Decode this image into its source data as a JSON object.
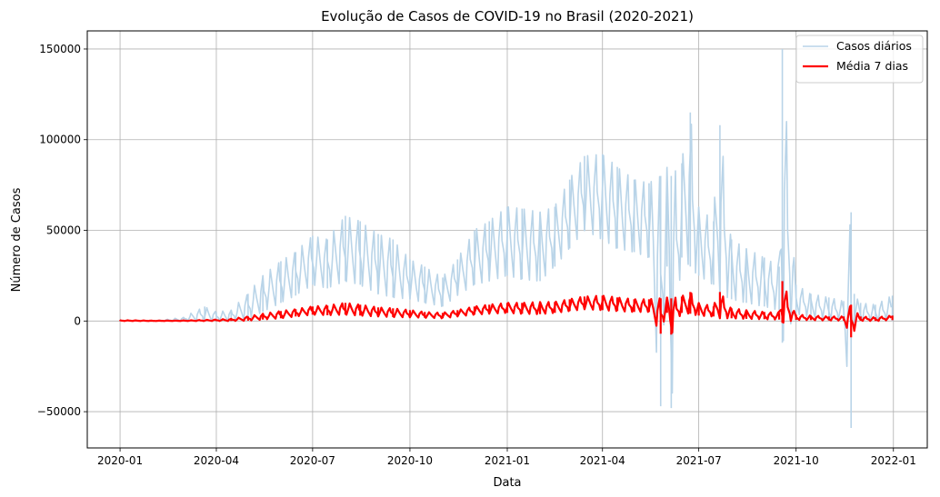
{
  "chart_data": {
    "type": "line",
    "title": "Evolução de Casos de COVID-19 no Brasil (2020-2021)",
    "xlabel": "Data",
    "ylabel": "Número de Casos",
    "xlim": [
      "2019-12-01",
      "2022-02-02"
    ],
    "ylim": [
      -70000,
      160000
    ],
    "x_ticks": [
      "2020-01",
      "2020-04",
      "2020-07",
      "2020-10",
      "2021-01",
      "2021-04",
      "2021-07",
      "2021-10",
      "2022-01"
    ],
    "y_ticks": [
      -50000,
      0,
      50000,
      100000,
      150000
    ],
    "grid": true,
    "legend_position": "top-right",
    "colors": {
      "daily": "#b9d4e8",
      "avg": "#ff0000",
      "grid": "#b0b0b0"
    },
    "series": [
      {
        "name": "Casos diários",
        "style": "thin light blue line",
        "x": [
          "2020-01-01",
          "2020-02-01",
          "2020-03-01",
          "2020-03-21",
          "2020-04-01",
          "2020-04-15",
          "2020-05-01",
          "2020-05-15",
          "2020-06-01",
          "2020-06-15",
          "2020-07-01",
          "2020-07-15",
          "2020-08-01",
          "2020-08-15",
          "2020-09-01",
          "2020-09-15",
          "2020-10-01",
          "2020-10-15",
          "2020-11-01",
          "2020-11-15",
          "2020-12-01",
          "2020-12-15",
          "2021-01-01",
          "2021-01-15",
          "2021-02-01",
          "2021-02-15",
          "2021-03-01",
          "2021-03-15",
          "2021-04-01",
          "2021-04-15",
          "2021-05-01",
          "2021-05-15",
          "2021-05-26",
          "2021-06-01",
          "2021-06-05",
          "2021-06-15",
          "2021-06-23",
          "2021-07-01",
          "2021-07-15",
          "2021-07-21",
          "2021-08-01",
          "2021-08-15",
          "2021-09-01",
          "2021-09-15",
          "2021-09-18",
          "2021-10-01",
          "2021-10-15",
          "2021-11-01",
          "2021-11-15",
          "2021-11-22",
          "2021-11-25",
          "2021-12-01",
          "2021-12-15",
          "2021-12-31"
        ],
        "high": [
          500,
          0,
          2000,
          8000,
          5000,
          6000,
          15000,
          25000,
          33000,
          38000,
          47000,
          45000,
          58000,
          55000,
          48000,
          45000,
          34000,
          30000,
          24000,
          34000,
          50000,
          55000,
          63000,
          62000,
          60000,
          63000,
          78000,
          91000,
          92000,
          85000,
          78000,
          76000,
          80000,
          85000,
          80000,
          87000,
          115000,
          63000,
          55000,
          108000,
          45000,
          40000,
          35000,
          30000,
          150000,
          20000,
          15000,
          13000,
          11000,
          60000,
          15000,
          10000,
          9000,
          14000
        ],
        "low": [
          0,
          0,
          0,
          0,
          0,
          0,
          1000,
          5000,
          10000,
          14000,
          20000,
          18000,
          22000,
          20000,
          15000,
          13000,
          12000,
          10000,
          8000,
          14000,
          20000,
          22000,
          25000,
          23000,
          22000,
          30000,
          40000,
          50000,
          45000,
          40000,
          38000,
          35000,
          -47000,
          30000,
          -48000,
          35000,
          30000,
          25000,
          20000,
          15000,
          12000,
          10000,
          8000,
          6000,
          -12000,
          4000,
          2000,
          1000,
          500,
          -59000,
          0,
          0,
          0,
          0
        ]
      },
      {
        "name": "Média 7 dias",
        "style": "thick red line",
        "x": [
          "2020-01-01",
          "2020-02-01",
          "2020-03-01",
          "2020-04-01",
          "2020-04-15",
          "2020-05-01",
          "2020-05-15",
          "2020-06-01",
          "2020-06-15",
          "2020-07-01",
          "2020-07-15",
          "2020-08-01",
          "2020-08-15",
          "2020-09-01",
          "2020-09-15",
          "2020-10-01",
          "2020-10-15",
          "2020-11-01",
          "2020-11-15",
          "2020-12-01",
          "2020-12-15",
          "2021-01-01",
          "2021-01-15",
          "2021-02-01",
          "2021-02-15",
          "2021-03-01",
          "2021-03-15",
          "2021-04-01",
          "2021-04-15",
          "2021-05-01",
          "2021-05-15",
          "2021-05-26",
          "2021-06-01",
          "2021-06-05",
          "2021-06-15",
          "2021-06-23",
          "2021-07-01",
          "2021-07-15",
          "2021-07-21",
          "2021-08-01",
          "2021-08-15",
          "2021-09-01",
          "2021-09-15",
          "2021-09-18",
          "2021-10-01",
          "2021-10-15",
          "2021-11-01",
          "2021-11-15",
          "2021-11-22",
          "2021-12-01",
          "2021-12-15",
          "2021-12-31"
        ],
        "high": [
          500,
          200,
          300,
          800,
          1200,
          2500,
          4000,
          5500,
          6500,
          8000,
          8500,
          10000,
          9000,
          7500,
          7000,
          6000,
          5000,
          4500,
          6000,
          8000,
          9000,
          10000,
          10000,
          10500,
          10500,
          12000,
          13500,
          14000,
          13000,
          12000,
          12000,
          12500,
          13000,
          12500,
          13500,
          16000,
          10000,
          8000,
          16000,
          7000,
          6000,
          5000,
          4500,
          22000,
          3500,
          3000,
          2500,
          2500,
          9000,
          2500,
          2000,
          3000
        ],
        "low": [
          0,
          0,
          0,
          0,
          0,
          200,
          800,
          1500,
          2500,
          3500,
          3200,
          3500,
          3000,
          2500,
          2200,
          2000,
          1800,
          1500,
          2500,
          3500,
          4000,
          4500,
          4000,
          3800,
          4500,
          5500,
          6500,
          6000,
          5500,
          5000,
          5000,
          -7000,
          4500,
          -7500,
          4500,
          4000,
          3000,
          2500,
          1500,
          1500,
          1200,
          1000,
          800,
          -1000,
          600,
          500,
          300,
          200,
          -9000,
          100,
          0,
          500
        ]
      }
    ]
  }
}
